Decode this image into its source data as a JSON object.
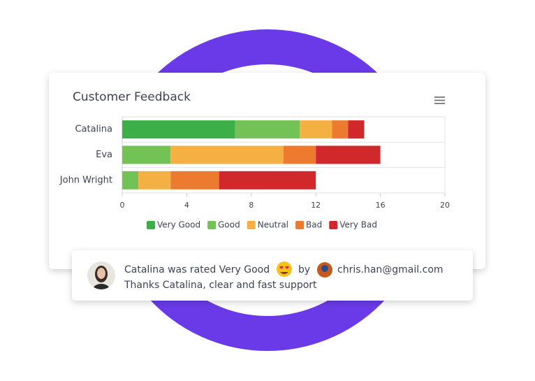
{
  "chart_data": {
    "type": "stacked-bar-horizontal",
    "title": "Customer Feedback",
    "categories": [
      "Catalina",
      "Eva",
      "John Wright"
    ],
    "series": [
      {
        "name": "Very Good",
        "color": "#3daf48",
        "values": [
          7,
          0,
          0
        ]
      },
      {
        "name": "Good",
        "color": "#72c256",
        "values": [
          4,
          3,
          1
        ]
      },
      {
        "name": "Neutral",
        "color": "#f5b043",
        "values": [
          2,
          7,
          2
        ]
      },
      {
        "name": "Bad",
        "color": "#ec7b2f",
        "values": [
          1,
          2,
          3
        ]
      },
      {
        "name": "Very Bad",
        "color": "#d1282b",
        "values": [
          1,
          4,
          6
        ]
      }
    ],
    "xlim": [
      0,
      20
    ],
    "xticks": [
      0,
      4,
      8,
      12,
      16,
      20
    ],
    "legend": "bottom"
  },
  "notification": {
    "text": "Catalina was rated Very Good",
    "by": "by",
    "email": "chris.han@gmail.com",
    "message": "Thanks Catalina, clear and fast support"
  }
}
